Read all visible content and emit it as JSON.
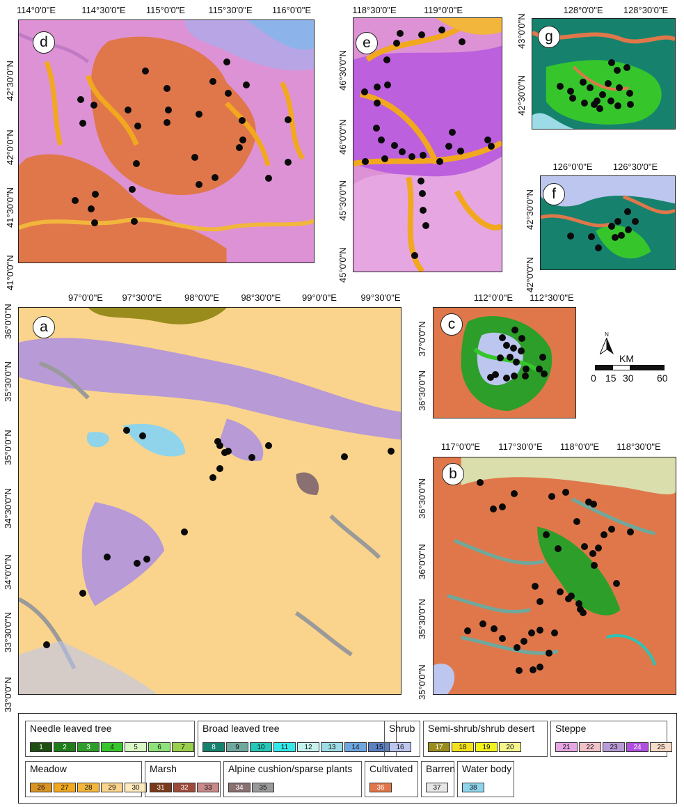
{
  "panels": {
    "a": {
      "label": "a",
      "x_ticks": [
        "97°0'0\"E",
        "97°30'0\"E",
        "98°0'0\"E",
        "98°30'0\"E",
        "99°0'0\"E",
        "99°30'0\"E"
      ],
      "y_ticks": [
        "36°0'0\"N",
        "35°30'0\"N",
        "35°0'0\"N",
        "34°30'0\"N",
        "34°0'0\"N",
        "33°30'0\"N",
        "33°0'0\"N"
      ]
    },
    "b": {
      "label": "b",
      "x_ticks": [
        "117°0'0\"E",
        "117°30'0\"E",
        "118°0'0\"E",
        "118°30'0\"E"
      ],
      "y_ticks": [
        "36°30'0\"N",
        "36°0'0\"N",
        "35°30'0\"N",
        "35°0'0\"N"
      ]
    },
    "c": {
      "label": "c",
      "x_ticks": [
        "112°0'0\"E",
        "112°30'0\"E"
      ],
      "y_ticks": [
        "37°0'0\"N",
        "36°30'0\"N"
      ]
    },
    "d": {
      "label": "d",
      "x_ticks": [
        "114°0'0\"E",
        "114°30'0\"E",
        "115°0'0\"E",
        "115°30'0\"E",
        "116°0'0\"E"
      ],
      "y_ticks": [
        "42°30'0\"N",
        "42°0'0\"N",
        "41°30'0\"N",
        "41°0'0\"N"
      ]
    },
    "e": {
      "label": "e",
      "x_ticks": [
        "118°30'0\"E",
        "119°0'0\"E"
      ],
      "y_ticks": [
        "46°30'0\"N",
        "46°0'0\"N",
        "45°30'0\"N",
        "45°0'0\"N"
      ]
    },
    "f": {
      "label": "f",
      "x_ticks": [
        "126°0'0\"E",
        "126°30'0\"E"
      ],
      "y_ticks": [
        "42°30'0\"N",
        "42°0'0\"N"
      ]
    },
    "g": {
      "label": "g",
      "x_ticks": [
        "128°0'0\"E",
        "128°30'0\"E"
      ],
      "y_ticks": [
        "43°0'0\"N",
        "42°30'0\"N"
      ]
    }
  },
  "scale": {
    "unit": "KM",
    "labels": [
      "0",
      "15",
      "30",
      "60"
    ],
    "north": "N"
  },
  "legend": [
    {
      "title": "Needle leaved tree",
      "items": [
        {
          "n": "1",
          "c": "#1f4d12"
        },
        {
          "n": "2",
          "c": "#1f7d1c"
        },
        {
          "n": "3",
          "c": "#2e9e2a"
        },
        {
          "n": "4",
          "c": "#36c62c"
        },
        {
          "n": "5",
          "c": "#d8f7c4"
        },
        {
          "n": "6",
          "c": "#8fe27a"
        },
        {
          "n": "7",
          "c": "#99cf4a"
        }
      ]
    },
    {
      "title": "Broad leaved tree",
      "items": [
        {
          "n": "8",
          "c": "#16826e"
        },
        {
          "n": "9",
          "c": "#6fa89c"
        },
        {
          "n": "10",
          "c": "#26c7b8"
        },
        {
          "n": "11",
          "c": "#33e8e8"
        },
        {
          "n": "12",
          "c": "#c6f2ee"
        },
        {
          "n": "13",
          "c": "#9ddce6"
        },
        {
          "n": "14",
          "c": "#6ea6e2"
        },
        {
          "n": "15",
          "c": "#5a7fc2"
        }
      ]
    },
    {
      "title": "Shrub",
      "items": [
        {
          "n": "16",
          "c": "#bcc6ee"
        }
      ]
    },
    {
      "title": "Semi-shrub/shrub desert",
      "items": [
        {
          "n": "17",
          "c": "#9a8c1c"
        },
        {
          "n": "18",
          "c": "#f2e11a"
        },
        {
          "n": "19",
          "c": "#f2f21c"
        },
        {
          "n": "20",
          "c": "#f5f58c"
        }
      ]
    },
    {
      "title": "Steppe",
      "items": [
        {
          "n": "21",
          "c": "#e5a6e2"
        },
        {
          "n": "22",
          "c": "#f1c2c8"
        },
        {
          "n": "23",
          "c": "#b79ad6"
        },
        {
          "n": "24",
          "c": "#b04fe0"
        },
        {
          "n": "25",
          "c": "#f7dcc8"
        }
      ]
    },
    {
      "title": "Meadow",
      "items": [
        {
          "n": "26",
          "c": "#d99423"
        },
        {
          "n": "27",
          "c": "#f0a81e"
        },
        {
          "n": "28",
          "c": "#f2b63c"
        },
        {
          "n": "29",
          "c": "#fad48c"
        },
        {
          "n": "30",
          "c": "#fde9bc"
        }
      ]
    },
    {
      "title": "Marsh",
      "items": [
        {
          "n": "31",
          "c": "#7a3a1c"
        },
        {
          "n": "32",
          "c": "#9c4a3a"
        },
        {
          "n": "33",
          "c": "#c98a8a"
        }
      ]
    },
    {
      "title": "Alpine cushion/sparse plants",
      "items": [
        {
          "n": "34",
          "c": "#8a7070"
        },
        {
          "n": "35",
          "c": "#9a9a9a"
        }
      ]
    },
    {
      "title": "Cultivated",
      "items": [
        {
          "n": "36",
          "c": "#e0774a"
        }
      ]
    },
    {
      "title": "Barren",
      "items": [
        {
          "n": "37",
          "c": "#e6e6e6"
        }
      ]
    },
    {
      "title": "Water body",
      "items": [
        {
          "n": "38",
          "c": "#8fd4ea"
        }
      ]
    }
  ]
}
